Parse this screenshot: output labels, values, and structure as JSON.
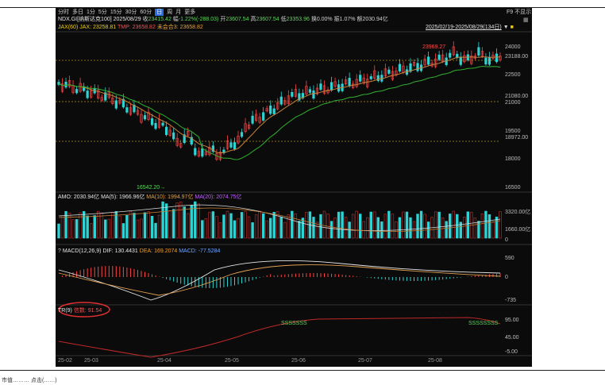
{
  "toolbar": {
    "tabs": [
      "分时",
      "多日",
      "1分",
      "5分",
      "15分",
      "30分",
      "60分",
      "日",
      "周",
      "月",
      "更多"
    ],
    "active": "日",
    "right_label": "F9 不显示"
  },
  "info": {
    "symbol": "NDX.GI[纳斯达克100]",
    "date": "2025/08/29",
    "close_lbl": "收",
    "close": "23415.42",
    "chg_lbl": "幅",
    "chg": "-1.22%(-288.03)",
    "open_lbl": "开",
    "open": "23607.54",
    "high_lbl": "高",
    "high": "23607.54",
    "low_lbl": "低",
    "low": "23353.96",
    "turn_lbl": "换",
    "turn": "0.00%",
    "amp_lbl": "振",
    "amp": "1.07%",
    "amt_lbl": "额",
    "amt": "2030.94亿"
  },
  "ma_line": {
    "jax": "JAX(60) JAX: 23258.81",
    "tmp": "TMP: 23658.82",
    "future": "未会合3: 23658.82"
  },
  "range": "2025/02/19-2025/08/29(134日)",
  "price_axis": [
    "24000",
    "23188.00",
    "22500",
    "21080.00",
    "21000",
    "19500",
    "18972.00",
    "18000",
    "16500"
  ],
  "annotations": {
    "high_mark": "23969.27",
    "low_mark": "16542.20"
  },
  "volume": {
    "title": "AMO: 2030.94亿",
    "ma5": "MA(5): 1966.96亿",
    "ma10": "MA(10): 1994.97亿",
    "ma20": "MA(20): 2074.75亿",
    "axis": [
      "3320.00亿",
      "1660.00亿",
      "0"
    ]
  },
  "macd": {
    "title": "MACD(12,26,9)",
    "dif": "DIF: 130.4431",
    "dea": "DEA: 169.2074",
    "macd": "MACD: -77.5284",
    "axis": [
      "590",
      "0",
      "-735"
    ]
  },
  "tr": {
    "title": "TR(9)",
    "value": "信数: 91.54",
    "axis": [
      "95.00",
      "45.00",
      "-5.00"
    ],
    "marks": [
      "SSSSSSS",
      "SSSSSSSS"
    ]
  },
  "x_axis": [
    "25-02",
    "25-03",
    "25-04",
    "25-05",
    "25-06",
    "25-07",
    "25-08"
  ],
  "footer": "市值……… 点击(……)"
}
